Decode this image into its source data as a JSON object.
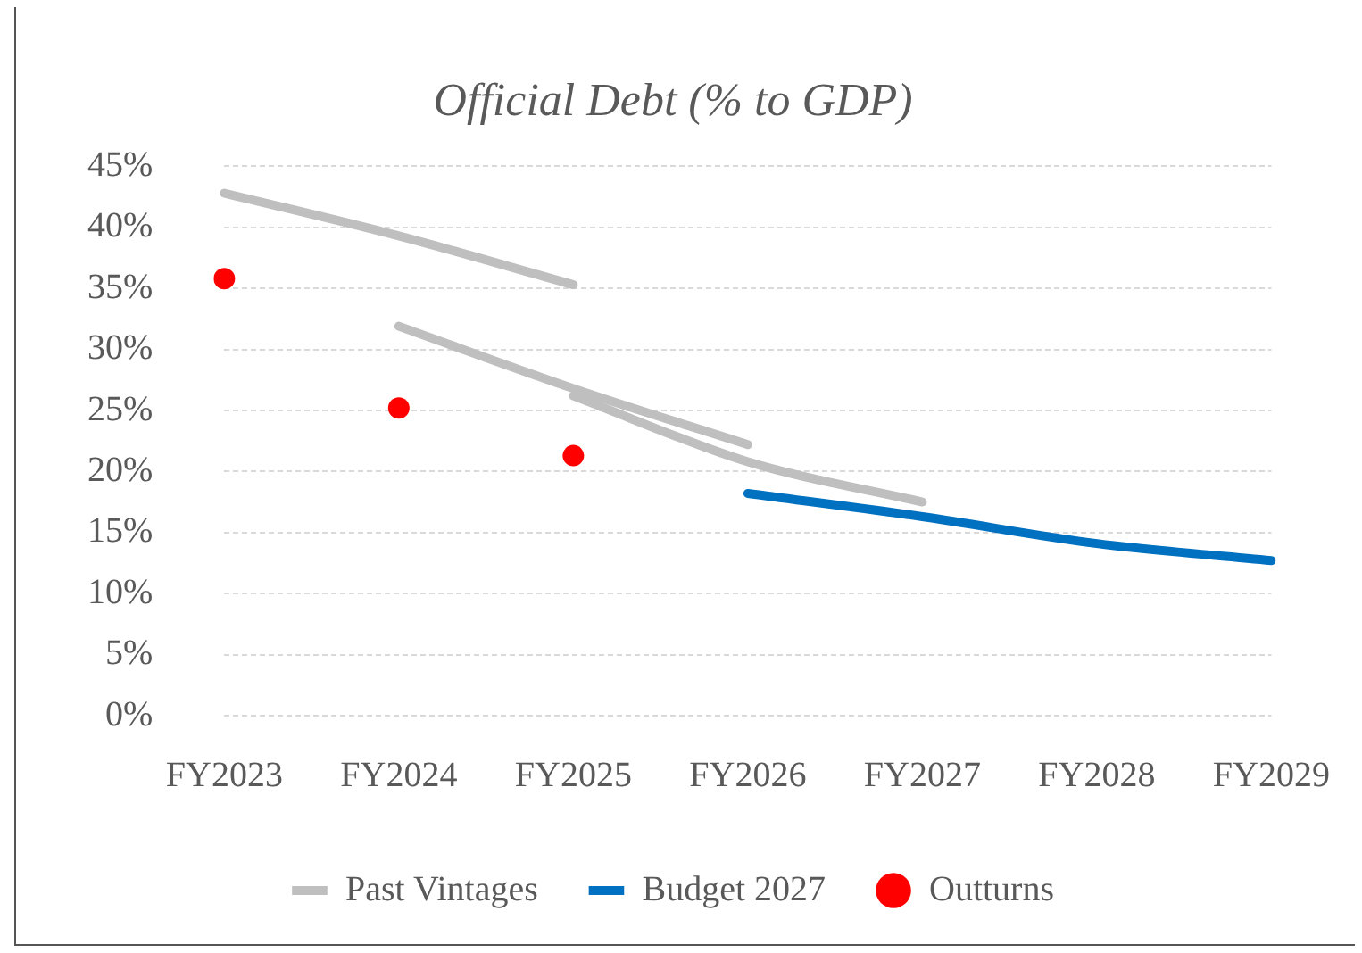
{
  "chart_data": {
    "type": "line",
    "title": "Official Debt (% to GDP)",
    "categories": [
      "FY2023",
      "FY2024",
      "FY2025",
      "FY2026",
      "FY2027",
      "FY2028",
      "FY2029"
    ],
    "series": [
      {
        "name": "Past Vintages",
        "type": "line",
        "color": "#bfbfbf",
        "values": [
          42.8,
          39.3,
          35.3,
          null,
          null,
          null,
          null
        ]
      },
      {
        "type": "line",
        "color": "#bfbfbf",
        "values": [
          null,
          31.9,
          26.8,
          22.2,
          null,
          null,
          null
        ]
      },
      {
        "type": "line",
        "color": "#bfbfbf",
        "values": [
          null,
          null,
          26.2,
          20.8,
          17.5,
          null,
          null
        ]
      },
      {
        "name": "Budget 2027",
        "type": "line",
        "color": "#0070c0",
        "values": [
          null,
          null,
          null,
          18.2,
          16.3,
          14.1,
          12.7
        ]
      },
      {
        "name": "Outturns",
        "type": "scatter",
        "color": "#ff0000",
        "values": [
          35.8,
          25.2,
          21.3,
          null,
          null,
          null,
          null
        ]
      }
    ],
    "ylim": [
      0,
      45
    ],
    "yticks": [
      {
        "value": 0,
        "label": "0%"
      },
      {
        "value": 5,
        "label": "5%"
      },
      {
        "value": 10,
        "label": "10%"
      },
      {
        "value": 15,
        "label": "15%"
      },
      {
        "value": 20,
        "label": "20%"
      },
      {
        "value": 25,
        "label": "25%"
      },
      {
        "value": 30,
        "label": "30%"
      },
      {
        "value": 35,
        "label": "35%"
      },
      {
        "value": 40,
        "label": "40%"
      },
      {
        "value": 45,
        "label": "45%"
      }
    ],
    "grid": "y",
    "legend": "bottom"
  }
}
